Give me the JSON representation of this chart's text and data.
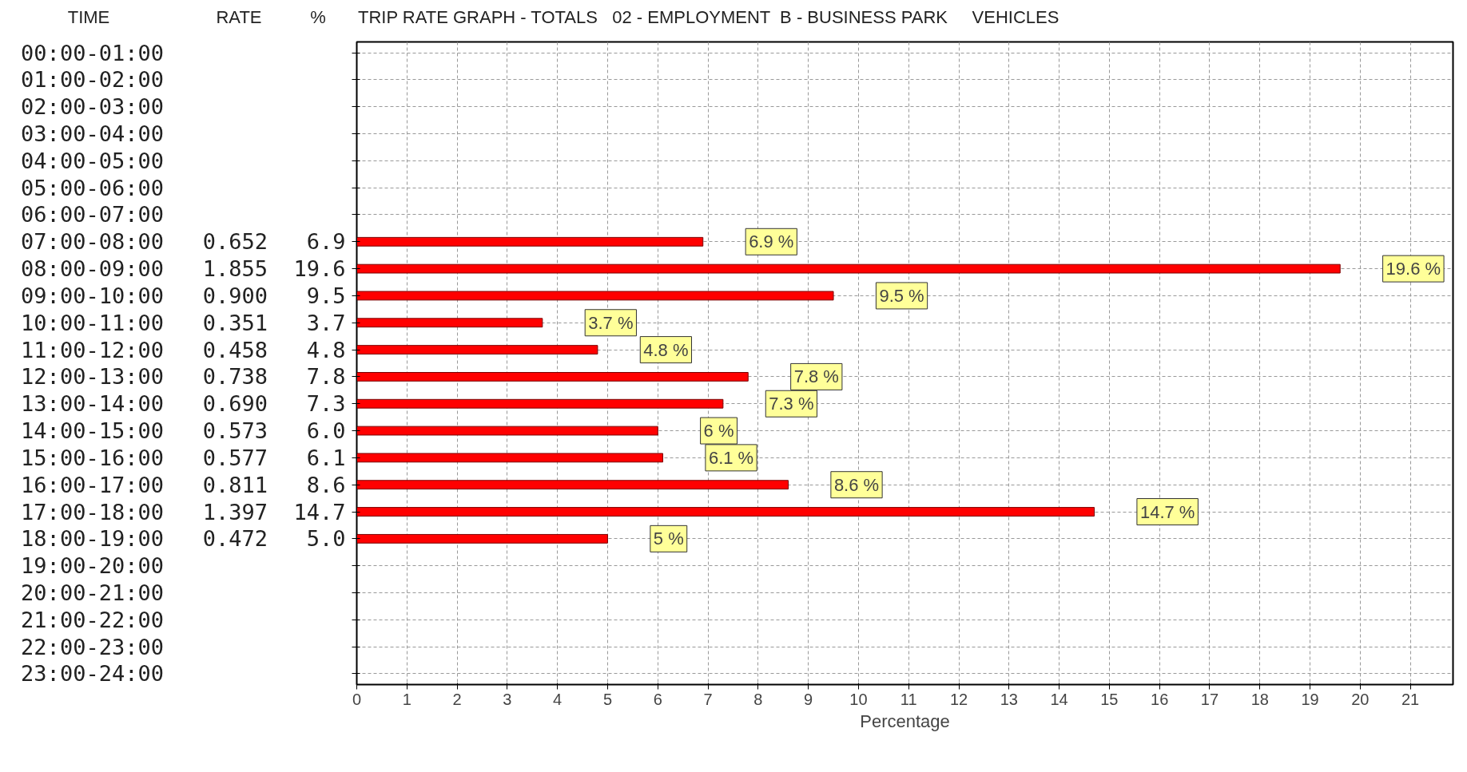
{
  "chart_data": {
    "type": "bar",
    "orientation": "horizontal",
    "title": "TRIP RATE GRAPH - TOTALS   02 - EMPLOYMENT  B - BUSINESS PARK     VEHICLES",
    "xlabel": "Percentage",
    "categories": [
      "00:00-01:00",
      "01:00-02:00",
      "02:00-03:00",
      "03:00-04:00",
      "04:00-05:00",
      "05:00-06:00",
      "06:00-07:00",
      "07:00-08:00 0.652 6.9",
      "08:00-09:00 1.855 19.6",
      "09:00-10:00 0.900 9.5",
      "10:00-11:00 0.351 3.7",
      "11:00-12:00 0.458 4.8",
      "12:00-13:00 0.738 7.8",
      "13:00-14:00 0.690 7.3",
      "14:00-15:00 0.573 6.0",
      "15:00-16:00 0.577 6.1",
      "16:00-17:00 0.811 8.6",
      "17:00-18:00 1.397 14.7",
      "18:00-19:00 0.472 5.0",
      "19:00-20:00",
      "20:00-21:00",
      "21:00-22:00",
      "22:00-23:00",
      "23:00-24:00"
    ],
    "values": [
      null,
      null,
      null,
      null,
      null,
      null,
      null,
      6.9,
      19.6,
      9.5,
      3.7,
      4.8,
      7.8,
      7.3,
      6.0,
      6.1,
      8.6,
      14.7,
      5.0,
      null,
      null,
      null,
      null,
      null
    ],
    "value_labels": [
      null,
      null,
      null,
      null,
      null,
      null,
      null,
      "6.9 %",
      "19.6 %",
      "9.5 %",
      "3.7 %",
      "4.8 %",
      "7.8 %",
      "7.3 %",
      "6 %",
      "6.1 %",
      "8.6 %",
      "14.7 %",
      "5 %",
      null,
      null,
      null,
      null,
      null
    ],
    "color": "#ff0000",
    "xlim": [
      0,
      21.85
    ],
    "xticks": [
      0,
      1,
      2,
      3,
      4,
      5,
      6,
      7,
      8,
      9,
      10,
      11,
      12,
      13,
      14,
      15,
      16,
      17,
      18,
      19,
      20,
      21
    ],
    "grid": true,
    "legend": false,
    "annotations": [
      "TIME",
      "RATE",
      "%"
    ]
  }
}
